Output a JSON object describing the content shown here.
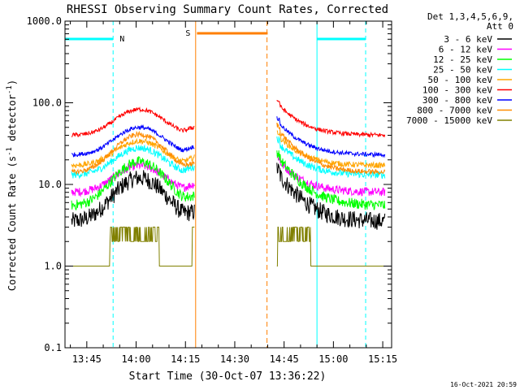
{
  "chart_data": {
    "type": "line",
    "title": "RHESSI Observing Summary Count Rates, Corrected",
    "xlabel": "Start Time (30-Oct-07 13:36:22)",
    "ylabel_main": "Corrected Count Rate (s",
    "ylabel_sup": "-1",
    "ylabel_tail": " detector",
    "ylabel_close": ")",
    "x_start_min": 818.37,
    "x_end_min": 917.7,
    "ylim": [
      0.1,
      1000.0
    ],
    "y_scale": "log",
    "x_ticks": [
      {
        "min": 825,
        "label": "13:45"
      },
      {
        "min": 840,
        "label": "14:00"
      },
      {
        "min": 855,
        "label": "14:15"
      },
      {
        "min": 870,
        "label": "14:30"
      },
      {
        "min": 885,
        "label": "14:45"
      },
      {
        "min": 900,
        "label": "15:00"
      },
      {
        "min": 915,
        "label": "15:15"
      }
    ],
    "y_ticks": [
      {
        "value": 0.1,
        "label": "0.1"
      },
      {
        "value": 1.0,
        "label": "1.0"
      },
      {
        "value": 10.0,
        "label": "10.0"
      },
      {
        "value": 100.0,
        "label": "100.0"
      },
      {
        "value": 1000.0,
        "label": "1000.0"
      }
    ],
    "legend_header": [
      "Det 1,3,4,5,6,9,",
      "Att 0"
    ],
    "legend_position": "right",
    "series": [
      {
        "name": "3 - 6 keV",
        "color": "#000000",
        "base": 3.5,
        "peak": 12,
        "noise": 0.25
      },
      {
        "name": "6 - 12 keV",
        "color": "#ff00ff",
        "base": 8,
        "peak": 17,
        "noise": 0.12
      },
      {
        "name": "12 - 25 keV",
        "color": "#00ff00",
        "base": 5.5,
        "peak": 19,
        "noise": 0.15
      },
      {
        "name": "25 - 50 keV",
        "color": "#00ffff",
        "base": 13,
        "peak": 28,
        "noise": 0.1
      },
      {
        "name": "50 - 100 keV",
        "color": "#ffa500",
        "base": 17,
        "peak": 34,
        "noise": 0.08
      },
      {
        "name": "100 - 300 keV",
        "color": "#ff0000",
        "base": 40,
        "peak": 83,
        "noise": 0.06
      },
      {
        "name": "300 - 800 keV",
        "color": "#0000ff",
        "base": 23,
        "peak": 50,
        "noise": 0.06
      },
      {
        "name": "800 - 7000 keV",
        "color": "#ff8c00",
        "base": 14,
        "peak": 41,
        "noise": 0.07
      },
      {
        "name": "7000 - 15000 keV",
        "color": "#808000",
        "base": 1,
        "peak": 3,
        "noise": 0.2
      }
    ],
    "gap": [
      857.8,
      882.8
    ],
    "night_bars": [
      [
        818.37,
        833.0
      ],
      [
        895.0,
        909.8
      ]
    ],
    "night_label": "N",
    "saa_bar": [
      858.5,
      880.0
    ],
    "saa_label": "S",
    "night_color": "#00ffff",
    "saa_color": "#ff7f00",
    "cyan_lines": [
      {
        "min": 818.37,
        "style": "solid"
      },
      {
        "min": 833.0,
        "style": "dashed"
      },
      {
        "min": 895.0,
        "style": "solid"
      },
      {
        "min": 909.8,
        "style": "dashed"
      }
    ],
    "orange_lines": [
      {
        "min": 858.1,
        "style": "solid"
      },
      {
        "min": 879.8,
        "style": "dashed"
      }
    ]
  },
  "footer_date": "16-Oct-2021 20:59"
}
